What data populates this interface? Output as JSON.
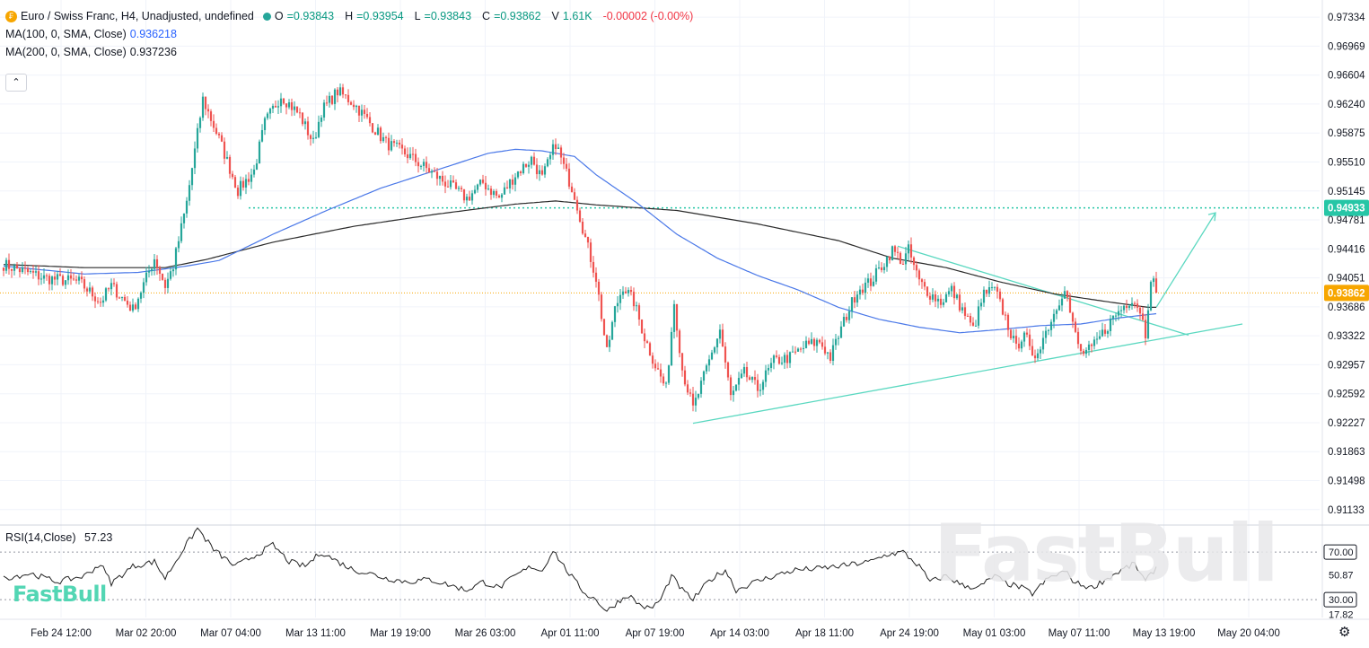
{
  "header": {
    "symbol_icon": "currency-exchange-icon",
    "symbol_title": "Euro / Swiss Franc, H4, Unadjusted, undefined",
    "o_label": "O",
    "o_value": "=0.93843",
    "h_label": "H",
    "h_value": "=0.93954",
    "l_label": "L",
    "l_value": "=0.93843",
    "c_label": "C",
    "c_value": "=0.93862",
    "v_label": "V",
    "v_value": "1.61K",
    "change": "-0.00002 (-0.00%)"
  },
  "indicators": {
    "ma100_label": "MA(100, 0, SMA, Close)",
    "ma100_value": "0.936218",
    "ma200_label": "MA(200, 0, SMA, Close)",
    "ma200_value": "0.937236",
    "collapse_icon": "chevron-up-icon"
  },
  "rsi": {
    "label": "RSI(14,Close)",
    "value": "57.23"
  },
  "branding": {
    "logo_text": "FastBull",
    "watermark_text": "FastBull"
  },
  "settings_icon": "gear-icon",
  "colors": {
    "up": "#26a69a",
    "down": "#ef5350",
    "ma100": "#4a78e8",
    "ma200": "#2b2b2b",
    "trend": "#5ad8c0",
    "current_price": "#f7a600",
    "target_price": "#26c6a6"
  },
  "chart_data": {
    "type": "candlestick",
    "price_axis": {
      "ticks": [
        "0.97334",
        "0.96969",
        "0.96604",
        "0.96240",
        "0.95875",
        "0.95510",
        "0.95145",
        "0.94781",
        "0.94416",
        "0.94051",
        "0.93686",
        "0.93322",
        "0.92957",
        "0.92592",
        "0.92227",
        "0.91863",
        "0.91498",
        "0.91133"
      ],
      "range": [
        0.9095,
        0.9755
      ]
    },
    "time_axis": {
      "ticks": [
        "Feb 24 12:00",
        "Mar 02 20:00",
        "Mar 07 04:00",
        "Mar 13 11:00",
        "Mar 19 19:00",
        "Mar 26 03:00",
        "Apr 01 11:00",
        "Apr 07 19:00",
        "Apr 14 03:00",
        "Apr 18 11:00",
        "Apr 24 19:00",
        "May 01 03:00",
        "May 07 11:00",
        "May 13 19:00",
        "May 20 04:00"
      ]
    },
    "current_price": "0.93862",
    "target_price": "0.94933",
    "anchors": [
      [
        0,
        0.9422
      ],
      [
        15,
        0.9405
      ],
      [
        28,
        0.94
      ],
      [
        36,
        0.9375
      ],
      [
        40,
        0.9395
      ],
      [
        48,
        0.9365
      ],
      [
        53,
        0.9405
      ],
      [
        56,
        0.943
      ],
      [
        60,
        0.9395
      ],
      [
        63,
        0.942
      ],
      [
        68,
        0.95
      ],
      [
        74,
        0.963
      ],
      [
        80,
        0.958
      ],
      [
        87,
        0.9515
      ],
      [
        93,
        0.954
      ],
      [
        97,
        0.96
      ],
      [
        103,
        0.9635
      ],
      [
        110,
        0.961
      ],
      [
        115,
        0.9575
      ],
      [
        118,
        0.9615
      ],
      [
        124,
        0.964
      ],
      [
        130,
        0.9625
      ],
      [
        136,
        0.96
      ],
      [
        142,
        0.9575
      ],
      [
        150,
        0.956
      ],
      [
        158,
        0.954
      ],
      [
        166,
        0.952
      ],
      [
        172,
        0.9505
      ],
      [
        178,
        0.9525
      ],
      [
        184,
        0.9505
      ],
      [
        190,
        0.9535
      ],
      [
        196,
        0.9555
      ],
      [
        200,
        0.953
      ],
      [
        205,
        0.9575
      ],
      [
        208,
        0.9545
      ],
      [
        212,
        0.951
      ],
      [
        216,
        0.9455
      ],
      [
        220,
        0.9405
      ],
      [
        224,
        0.931
      ],
      [
        227,
        0.9365
      ],
      [
        230,
        0.9395
      ],
      [
        234,
        0.9375
      ],
      [
        238,
        0.933
      ],
      [
        242,
        0.9295
      ],
      [
        246,
        0.9265
      ],
      [
        249,
        0.9375
      ],
      [
        252,
        0.929
      ],
      [
        256,
        0.924
      ],
      [
        261,
        0.929
      ],
      [
        266,
        0.934
      ],
      [
        270,
        0.9255
      ],
      [
        275,
        0.9285
      ],
      [
        280,
        0.9265
      ],
      [
        286,
        0.93
      ],
      [
        292,
        0.9305
      ],
      [
        298,
        0.932
      ],
      [
        303,
        0.9325
      ],
      [
        307,
        0.9305
      ],
      [
        312,
        0.935
      ],
      [
        317,
        0.939
      ],
      [
        322,
        0.94
      ],
      [
        326,
        0.942
      ],
      [
        330,
        0.944
      ],
      [
        334,
        0.9425
      ],
      [
        336,
        0.944
      ],
      [
        340,
        0.94
      ],
      [
        344,
        0.9385
      ],
      [
        348,
        0.9375
      ],
      [
        352,
        0.939
      ],
      [
        356,
        0.9365
      ],
      [
        360,
        0.934
      ],
      [
        364,
        0.9385
      ],
      [
        368,
        0.939
      ],
      [
        372,
        0.9355
      ],
      [
        376,
        0.9315
      ],
      [
        379,
        0.934
      ],
      [
        382,
        0.93
      ],
      [
        386,
        0.933
      ],
      [
        390,
        0.936
      ],
      [
        394,
        0.9395
      ],
      [
        397,
        0.9345
      ],
      [
        400,
        0.931
      ],
      [
        404,
        0.9315
      ],
      [
        408,
        0.9335
      ],
      [
        412,
        0.9355
      ],
      [
        416,
        0.937
      ],
      [
        419,
        0.938
      ],
      [
        422,
        0.9365
      ],
      [
        424,
        0.9335
      ],
      [
        426,
        0.9408
      ],
      [
        428,
        0.939
      ]
    ],
    "ma100_anchors": [
      [
        0,
        0.942
      ],
      [
        30,
        0.941
      ],
      [
        50,
        0.9412
      ],
      [
        68,
        0.942
      ],
      [
        80,
        0.9427
      ],
      [
        100,
        0.946
      ],
      [
        120,
        0.949
      ],
      [
        140,
        0.9518
      ],
      [
        160,
        0.954
      ],
      [
        180,
        0.9562
      ],
      [
        190,
        0.9567
      ],
      [
        200,
        0.9565
      ],
      [
        212,
        0.9558
      ],
      [
        220,
        0.9535
      ],
      [
        235,
        0.95
      ],
      [
        250,
        0.946
      ],
      [
        265,
        0.943
      ],
      [
        280,
        0.9408
      ],
      [
        295,
        0.939
      ],
      [
        310,
        0.9368
      ],
      [
        325,
        0.9353
      ],
      [
        340,
        0.9343
      ],
      [
        355,
        0.9336
      ],
      [
        370,
        0.934
      ],
      [
        385,
        0.9345
      ],
      [
        400,
        0.9347
      ],
      [
        415,
        0.9355
      ],
      [
        428,
        0.936
      ]
    ],
    "ma200_anchors": [
      [
        0,
        0.9422
      ],
      [
        30,
        0.9418
      ],
      [
        60,
        0.9418
      ],
      [
        75,
        0.9428
      ],
      [
        100,
        0.945
      ],
      [
        130,
        0.947
      ],
      [
        160,
        0.9485
      ],
      [
        190,
        0.9498
      ],
      [
        205,
        0.9502
      ],
      [
        220,
        0.9497
      ],
      [
        250,
        0.949
      ],
      [
        280,
        0.9473
      ],
      [
        310,
        0.9452
      ],
      [
        330,
        0.943
      ],
      [
        350,
        0.9418
      ],
      [
        370,
        0.94
      ],
      [
        390,
        0.9385
      ],
      [
        410,
        0.9375
      ],
      [
        425,
        0.9368
      ]
    ],
    "rsi_anchors": [
      [
        0,
        48
      ],
      [
        10,
        52
      ],
      [
        20,
        45
      ],
      [
        30,
        50
      ],
      [
        36,
        60
      ],
      [
        40,
        44
      ],
      [
        48,
        58
      ],
      [
        56,
        62
      ],
      [
        60,
        48
      ],
      [
        66,
        70
      ],
      [
        72,
        90
      ],
      [
        78,
        72
      ],
      [
        86,
        58
      ],
      [
        94,
        68
      ],
      [
        100,
        76
      ],
      [
        106,
        62
      ],
      [
        112,
        58
      ],
      [
        118,
        70
      ],
      [
        124,
        62
      ],
      [
        130,
        55
      ],
      [
        136,
        52
      ],
      [
        142,
        48
      ],
      [
        150,
        45
      ],
      [
        158,
        47
      ],
      [
        166,
        42
      ],
      [
        172,
        38
      ],
      [
        178,
        45
      ],
      [
        184,
        40
      ],
      [
        190,
        50
      ],
      [
        196,
        58
      ],
      [
        200,
        54
      ],
      [
        204,
        72
      ],
      [
        208,
        58
      ],
      [
        212,
        46
      ],
      [
        216,
        35
      ],
      [
        220,
        30
      ],
      [
        224,
        20
      ],
      [
        228,
        28
      ],
      [
        232,
        34
      ],
      [
        236,
        26
      ],
      [
        240,
        22
      ],
      [
        244,
        30
      ],
      [
        248,
        50
      ],
      [
        252,
        38
      ],
      [
        256,
        30
      ],
      [
        262,
        46
      ],
      [
        268,
        55
      ],
      [
        272,
        38
      ],
      [
        278,
        44
      ],
      [
        286,
        50
      ],
      [
        294,
        55
      ],
      [
        302,
        56
      ],
      [
        310,
        58
      ],
      [
        316,
        60
      ],
      [
        322,
        62
      ],
      [
        328,
        68
      ],
      [
        334,
        70
      ],
      [
        340,
        58
      ],
      [
        344,
        45
      ],
      [
        350,
        50
      ],
      [
        356,
        42
      ],
      [
        362,
        40
      ],
      [
        368,
        50
      ],
      [
        372,
        44
      ],
      [
        378,
        40
      ],
      [
        382,
        35
      ],
      [
        388,
        48
      ],
      [
        394,
        54
      ],
      [
        398,
        44
      ],
      [
        404,
        40
      ],
      [
        410,
        48
      ],
      [
        416,
        56
      ],
      [
        420,
        60
      ],
      [
        424,
        45
      ],
      [
        428,
        57.23
      ]
    ],
    "rsi_levels": [
      "70.00",
      "50.87",
      "30.00",
      "17.82"
    ],
    "rsi_ticks": [
      70,
      50.87,
      30,
      17.82
    ],
    "rsi_range": [
      15,
      92
    ],
    "trendlines": [
      {
        "name": "support",
        "from": [
          256,
          0.9222
        ],
        "to": [
          460,
          0.9347
        ]
      },
      {
        "name": "resistance",
        "from": [
          332,
          0.9445
        ],
        "to": [
          440,
          0.9333
        ]
      },
      {
        "name": "projection-arrow",
        "from": [
          428,
          0.9368
        ],
        "to": [
          450,
          0.9487
        ]
      }
    ],
    "last_index": 428
  }
}
